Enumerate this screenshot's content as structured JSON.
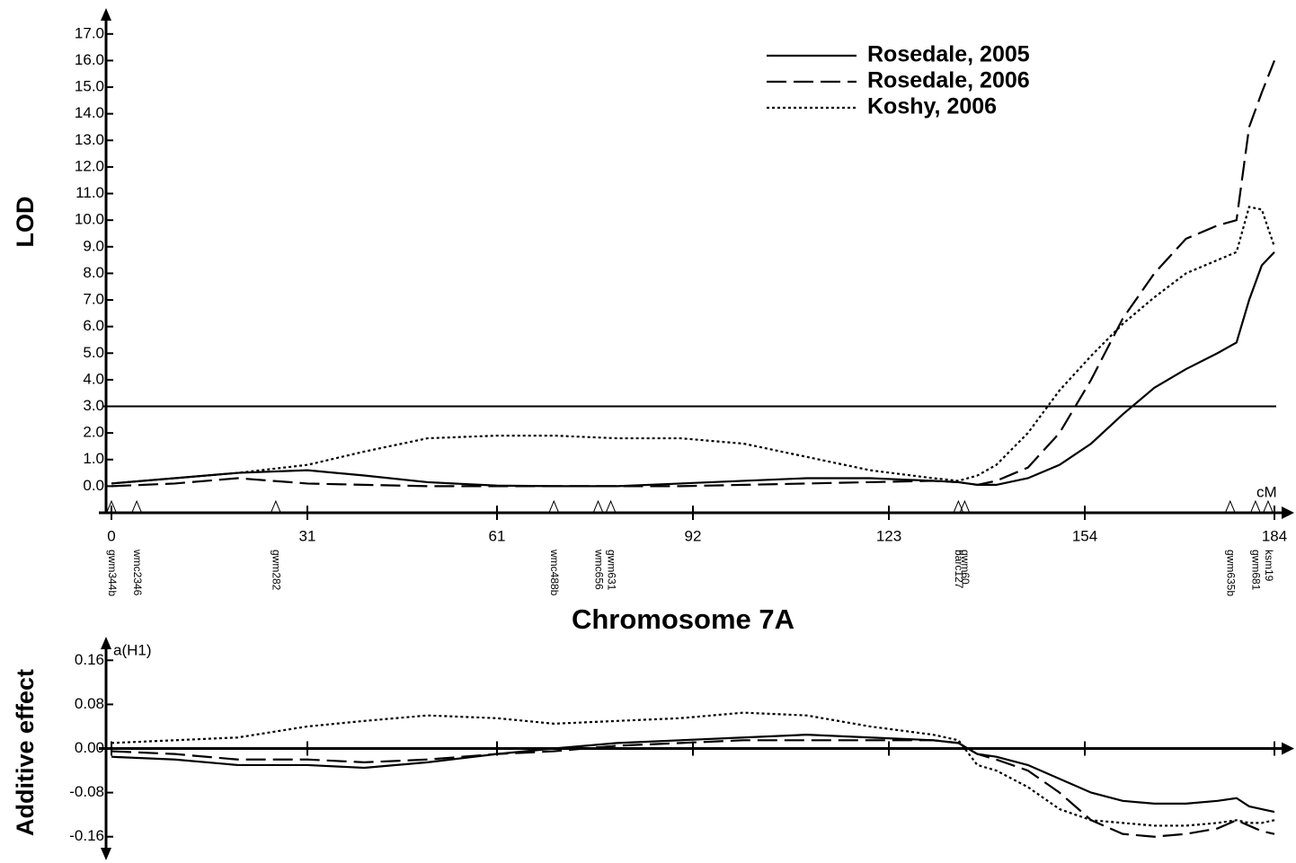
{
  "chart_data": [
    {
      "type": "line",
      "xlabel": "Chromosome 7A",
      "ylabel": "LOD",
      "x_unit": "cM",
      "x": [
        0,
        10,
        20,
        31,
        40,
        50,
        61,
        70,
        80,
        90,
        100,
        110,
        120,
        130,
        134,
        137,
        140,
        145,
        150,
        155,
        160,
        165,
        170,
        175,
        178,
        180,
        182,
        184
      ],
      "xlim": [
        0,
        184
      ],
      "xticks": [
        0,
        31,
        61,
        92,
        123,
        154,
        184
      ],
      "ylim": [
        -1,
        17.5
      ],
      "yticks": [
        {
          "value": 0,
          "label": "0.0"
        },
        {
          "value": 1,
          "label": "1.0"
        },
        {
          "value": 2,
          "label": "2.0"
        },
        {
          "value": 3,
          "label": "3.0"
        },
        {
          "value": 4,
          "label": "4.0"
        },
        {
          "value": 5,
          "label": "5.0"
        },
        {
          "value": 6,
          "label": "6.0"
        },
        {
          "value": 7,
          "label": "7.0"
        },
        {
          "value": 8,
          "label": "8.0"
        },
        {
          "value": 9,
          "label": "9.0"
        },
        {
          "value": 10,
          "label": "10.0"
        },
        {
          "value": 11,
          "label": "11.0"
        },
        {
          "value": 12,
          "label": "12.0"
        },
        {
          "value": 13,
          "label": "13.0"
        },
        {
          "value": 14,
          "label": "14.0"
        },
        {
          "value": 15,
          "label": "15.0"
        },
        {
          "value": 16,
          "label": "16.0"
        },
        {
          "value": 17,
          "label": "17.0"
        }
      ],
      "threshold": 3,
      "legend": "upper right",
      "series": [
        {
          "name": "Rosedale, 2005",
          "color": "#000000",
          "dash": "solid",
          "values": [
            0.1,
            0.3,
            0.5,
            0.6,
            0.4,
            0.15,
            0.02,
            0,
            0,
            0.1,
            0.2,
            0.3,
            0.3,
            0.2,
            0.15,
            0.05,
            0.05,
            0.3,
            0.8,
            1.6,
            2.7,
            3.7,
            4.4,
            5.0,
            5.4,
            7.0,
            8.3,
            8.8
          ]
        },
        {
          "name": "Rosedale, 2006",
          "color": "#000000",
          "dash": "dashed",
          "values": [
            0,
            0.1,
            0.3,
            0.1,
            0.05,
            0,
            0,
            0,
            0,
            0,
            0.05,
            0.1,
            0.15,
            0.2,
            0.15,
            0.05,
            0.2,
            0.7,
            2.0,
            4.0,
            6.3,
            8.0,
            9.3,
            9.8,
            10.0,
            13.5,
            14.8,
            16.0
          ]
        },
        {
          "name": "Koshy, 2006",
          "color": "#000000",
          "dash": "dotted",
          "values": [
            0.1,
            0.3,
            0.5,
            0.8,
            1.3,
            1.8,
            1.9,
            1.9,
            1.8,
            1.8,
            1.6,
            1.1,
            0.6,
            0.3,
            0.2,
            0.4,
            0.8,
            2.0,
            3.6,
            4.9,
            6.1,
            7.1,
            8.0,
            8.5,
            8.8,
            10.5,
            10.4,
            9.0
          ]
        }
      ],
      "markers": [
        {
          "name": "gwm344b",
          "position": 0
        },
        {
          "name": "wmc2346",
          "position": 4
        },
        {
          "name": "gwm282",
          "position": 26
        },
        {
          "name": "wmc488b",
          "position": 70
        },
        {
          "name": "wmc656",
          "position": 77
        },
        {
          "name": "gwm631",
          "position": 79
        },
        {
          "name": "barc127",
          "position": 134
        },
        {
          "name": "gwm60",
          "position": 135
        },
        {
          "name": "gwm635b",
          "position": 177
        },
        {
          "name": "gwm681",
          "position": 181
        },
        {
          "name": "ksm19",
          "position": 183
        }
      ]
    },
    {
      "type": "line",
      "ylabel": "Additive effect",
      "y_unit": "a(H1)",
      "x": [
        0,
        10,
        20,
        31,
        40,
        50,
        61,
        70,
        80,
        90,
        100,
        110,
        120,
        130,
        134,
        137,
        140,
        145,
        150,
        155,
        160,
        165,
        170,
        175,
        178,
        180,
        182,
        184
      ],
      "xlim": [
        0,
        184
      ],
      "xticks": [
        0,
        31,
        61,
        92,
        123,
        154,
        184
      ],
      "xtick_labels": false,
      "ylim": [
        -0.18,
        0.18
      ],
      "yticks": [
        {
          "value": 0.16,
          "label": "0.16"
        },
        {
          "value": 0.08,
          "label": "0.08"
        },
        {
          "value": 0,
          "label": "0.00"
        },
        {
          "value": -0.08,
          "label": "-0.08"
        },
        {
          "value": -0.16,
          "label": "-0.16"
        }
      ],
      "series": [
        {
          "color": "#000000",
          "dash": "solid",
          "values": [
            -0.015,
            -0.02,
            -0.03,
            -0.03,
            -0.035,
            -0.025,
            -0.01,
            0,
            0.01,
            0.015,
            0.02,
            0.025,
            0.02,
            0.015,
            0.01,
            -0.01,
            -0.015,
            -0.03,
            -0.055,
            -0.08,
            -0.095,
            -0.1,
            -0.1,
            -0.095,
            -0.09,
            -0.105,
            -0.11,
            -0.115
          ]
        },
        {
          "color": "#000000",
          "dash": "dashed",
          "values": [
            -0.005,
            -0.01,
            -0.02,
            -0.02,
            -0.025,
            -0.02,
            -0.01,
            -0.005,
            0.005,
            0.01,
            0.015,
            0.015,
            0.015,
            0.015,
            0.01,
            -0.01,
            -0.02,
            -0.04,
            -0.08,
            -0.13,
            -0.155,
            -0.16,
            -0.155,
            -0.145,
            -0.13,
            -0.14,
            -0.15,
            -0.155
          ]
        },
        {
          "color": "#000000",
          "dash": "dotted",
          "values": [
            0.01,
            0.015,
            0.02,
            0.04,
            0.05,
            0.06,
            0.055,
            0.045,
            0.05,
            0.055,
            0.065,
            0.06,
            0.04,
            0.025,
            0.015,
            -0.03,
            -0.04,
            -0.07,
            -0.11,
            -0.13,
            -0.135,
            -0.14,
            -0.14,
            -0.135,
            -0.13,
            -0.135,
            -0.135,
            -0.13
          ]
        }
      ]
    }
  ]
}
